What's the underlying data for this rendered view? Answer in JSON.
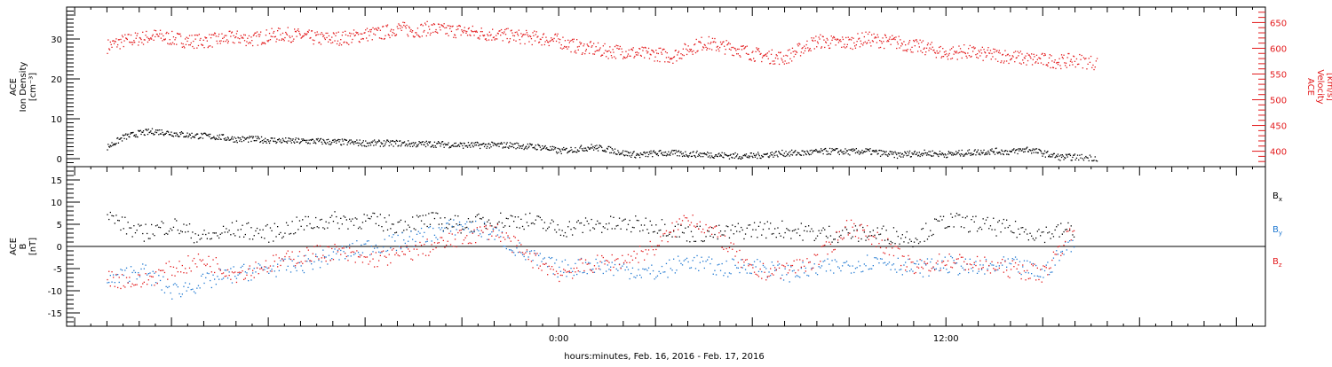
{
  "chart_data": [
    {
      "type": "scatter",
      "panel": "top",
      "left_axis": {
        "label_lines": [
          "ACE",
          "Ion Density",
          "[cm⁻³]"
        ],
        "range": [
          -2,
          38
        ],
        "ticks": [
          0,
          10,
          20,
          30
        ],
        "tick_labels": [
          "0",
          "10",
          "20",
          "30"
        ],
        "color": "#000000"
      },
      "right_axis": {
        "label_lines": [
          "ACE",
          "Velocity",
          "[km/s]"
        ],
        "range": [
          370,
          680
        ],
        "ticks": [
          400,
          450,
          500,
          550,
          600,
          650
        ],
        "tick_labels": [
          "400",
          "450",
          "500",
          "550",
          "600",
          "650"
        ],
        "color": "#e31a1c"
      },
      "series": [
        {
          "axis": "left",
          "color": "#000000",
          "points": [
            [
              -14,
              3
            ],
            [
              -13.5,
              5.5
            ],
            [
              -13,
              6.5
            ],
            [
              -12.5,
              7.0
            ],
            [
              -12,
              6.5
            ],
            [
              -11.5,
              6.0
            ],
            [
              -11,
              5.8
            ],
            [
              -10.5,
              5.5
            ],
            [
              -10,
              5.0
            ],
            [
              -9.5,
              5.0
            ],
            [
              -9,
              4.8
            ],
            [
              -8.5,
              4.6
            ],
            [
              -8,
              4.5
            ],
            [
              -7.5,
              4.5
            ],
            [
              -7,
              4.3
            ],
            [
              -6.5,
              4.2
            ],
            [
              -6,
              4.0
            ],
            [
              -5.5,
              4.0
            ],
            [
              -5,
              4.0
            ],
            [
              -4.5,
              3.8
            ],
            [
              -4,
              3.8
            ],
            [
              -3.5,
              3.7
            ],
            [
              -3,
              3.5
            ],
            [
              -2.5,
              3.5
            ],
            [
              -2,
              3.5
            ],
            [
              -1.5,
              3.5
            ],
            [
              -1,
              3.2
            ],
            [
              -0.5,
              3.0
            ],
            [
              0,
              2.0
            ],
            [
              0.5,
              2.5
            ],
            [
              1,
              3.0
            ],
            [
              1.5,
              2.5
            ],
            [
              2,
              1.5
            ],
            [
              2.5,
              1.0
            ],
            [
              3,
              1.5
            ],
            [
              3.5,
              1.5
            ],
            [
              4,
              1.3
            ],
            [
              4.5,
              1.2
            ],
            [
              5,
              1.0
            ],
            [
              5.5,
              0.8
            ],
            [
              6,
              0.8
            ],
            [
              6.5,
              1.2
            ],
            [
              7,
              1.5
            ],
            [
              7.5,
              1.5
            ],
            [
              8,
              1.8
            ],
            [
              8.5,
              2.0
            ],
            [
              9,
              1.8
            ],
            [
              9.5,
              2.0
            ],
            [
              10,
              1.5
            ],
            [
              10.5,
              1.0
            ],
            [
              11,
              1.5
            ],
            [
              11.5,
              1.5
            ],
            [
              12,
              1.2
            ],
            [
              12.5,
              1.5
            ],
            [
              13,
              1.8
            ],
            [
              13.5,
              2.0
            ],
            [
              14,
              1.8
            ],
            [
              14.5,
              2.5
            ],
            [
              15,
              1.5
            ],
            [
              15.5,
              0.5
            ],
            [
              16,
              0.5
            ],
            [
              16.7,
              0.3
            ]
          ]
        },
        {
          "axis": "right",
          "color": "#e31a1c",
          "points": [
            [
              -14,
              605
            ],
            [
              -13.5,
              615
            ],
            [
              -13,
              620
            ],
            [
              -12.5,
              625
            ],
            [
              -12,
              620
            ],
            [
              -11.5,
              615
            ],
            [
              -11,
              615
            ],
            [
              -10.5,
              618
            ],
            [
              -10,
              622
            ],
            [
              -9.5,
              618
            ],
            [
              -9,
              625
            ],
            [
              -8.5,
              628
            ],
            [
              -8,
              625
            ],
            [
              -7.5,
              620
            ],
            [
              -7,
              620
            ],
            [
              -6.5,
              622
            ],
            [
              -6,
              628
            ],
            [
              -5.5,
              630
            ],
            [
              -5,
              640
            ],
            [
              -4.5,
              635
            ],
            [
              -4,
              640
            ],
            [
              -3.5,
              635
            ],
            [
              -3,
              635
            ],
            [
              -2.5,
              630
            ],
            [
              -2,
              628
            ],
            [
              -1.5,
              625
            ],
            [
              -1,
              622
            ],
            [
              -0.5,
              620
            ],
            [
              0,
              615
            ],
            [
              0.5,
              605
            ],
            [
              1,
              600
            ],
            [
              1.5,
              595
            ],
            [
              2,
              595
            ],
            [
              2.5,
              590
            ],
            [
              3,
              590
            ],
            [
              3.5,
              585
            ],
            [
              4,
              600
            ],
            [
              4.5,
              612
            ],
            [
              5,
              605
            ],
            [
              5.5,
              600
            ],
            [
              6,
              590
            ],
            [
              6.5,
              585
            ],
            [
              7,
              582
            ],
            [
              7.5,
              600
            ],
            [
              8,
              615
            ],
            [
              8.5,
              612
            ],
            [
              9,
              612
            ],
            [
              9.5,
              620
            ],
            [
              10,
              615
            ],
            [
              10.5,
              612
            ],
            [
              11,
              605
            ],
            [
              11.5,
              600
            ],
            [
              12,
              590
            ],
            [
              12.5,
              595
            ],
            [
              13,
              590
            ],
            [
              13.5,
              588
            ],
            [
              14,
              585
            ],
            [
              14.5,
              580
            ],
            [
              15,
              578
            ],
            [
              15.5,
              575
            ],
            [
              16,
              578
            ],
            [
              16.7,
              572
            ]
          ]
        }
      ]
    },
    {
      "type": "scatter",
      "panel": "bottom",
      "left_axis": {
        "label_lines": [
          "ACE",
          "B",
          "[nT]"
        ],
        "range": [
          -18,
          18
        ],
        "ticks": [
          -15,
          -10,
          -5,
          0,
          5,
          10,
          15
        ],
        "tick_labels": [
          "-15",
          "-10",
          "-5",
          "0",
          "5",
          "10",
          "15"
        ],
        "color": "#000000"
      },
      "x_axis": {
        "label": "hours:minutes, Feb. 16, 2016 - Feb. 17, 2016",
        "range": [
          -15.25,
          21.9
        ],
        "ticks": [
          0,
          12
        ],
        "tick_labels": [
          "0:00",
          "12:00"
        ]
      },
      "series": [
        {
          "name": "Bx",
          "color": "#000000",
          "points": [
            [
              -14,
              7
            ],
            [
              -13,
              3
            ],
            [
              -12,
              5
            ],
            [
              -11,
              2
            ],
            [
              -10,
              4
            ],
            [
              -9,
              3
            ],
            [
              -8,
              5
            ],
            [
              -7,
              6
            ],
            [
              -6,
              6
            ],
            [
              -5,
              5
            ],
            [
              -4,
              6
            ],
            [
              -3,
              5
            ],
            [
              -2,
              6
            ],
            [
              -1,
              6
            ],
            [
              0,
              4
            ],
            [
              1,
              5
            ],
            [
              2,
              5
            ],
            [
              3,
              5
            ],
            [
              4,
              3
            ],
            [
              5,
              3
            ],
            [
              6,
              4
            ],
            [
              7,
              4
            ],
            [
              8,
              3
            ],
            [
              9,
              3
            ],
            [
              10,
              3
            ],
            [
              11,
              2
            ],
            [
              12,
              6
            ],
            [
              13,
              5
            ],
            [
              14,
              4
            ],
            [
              15,
              3
            ],
            [
              16,
              4
            ]
          ]
        },
        {
          "name": "By",
          "color": "#1f78d1",
          "points": [
            [
              -14,
              -8
            ],
            [
              -13,
              -5
            ],
            [
              -12,
              -10
            ],
            [
              -11,
              -8
            ],
            [
              -10,
              -6
            ],
            [
              -9,
              -5
            ],
            [
              -8,
              -4
            ],
            [
              -7,
              -2
            ],
            [
              -6,
              0
            ],
            [
              -5,
              1
            ],
            [
              -4,
              3
            ],
            [
              -3,
              5
            ],
            [
              -2,
              3
            ],
            [
              -1,
              -2
            ],
            [
              0,
              -5
            ],
            [
              1,
              -4
            ],
            [
              2,
              -5
            ],
            [
              3,
              -6
            ],
            [
              4,
              -3
            ],
            [
              5,
              -5
            ],
            [
              6,
              -4
            ],
            [
              7,
              -6
            ],
            [
              8,
              -5
            ],
            [
              9,
              -4
            ],
            [
              10,
              -3
            ],
            [
              11,
              -5
            ],
            [
              12,
              -4
            ],
            [
              13,
              -5
            ],
            [
              14,
              -4
            ],
            [
              15,
              -6
            ],
            [
              16,
              2
            ]
          ]
        },
        {
          "name": "Bz",
          "color": "#e31a1c",
          "points": [
            [
              -14,
              -7
            ],
            [
              -13,
              -8
            ],
            [
              -12,
              -5
            ],
            [
              -11,
              -3
            ],
            [
              -10,
              -6
            ],
            [
              -9,
              -4
            ],
            [
              -8,
              -2
            ],
            [
              -7,
              -1
            ],
            [
              -6,
              -3
            ],
            [
              -5,
              -2
            ],
            [
              -4,
              0
            ],
            [
              -3,
              2
            ],
            [
              -2,
              4
            ],
            [
              -1,
              -2
            ],
            [
              0,
              -6
            ],
            [
              1,
              -4
            ],
            [
              2,
              -3
            ],
            [
              3,
              0
            ],
            [
              4,
              7
            ],
            [
              5,
              2
            ],
            [
              6,
              -6
            ],
            [
              7,
              -5
            ],
            [
              8,
              -3
            ],
            [
              9,
              5
            ],
            [
              10,
              1
            ],
            [
              11,
              -5
            ],
            [
              12,
              -3
            ],
            [
              13,
              -4
            ],
            [
              14,
              -5
            ],
            [
              15,
              -6
            ],
            [
              16,
              5
            ]
          ]
        }
      ],
      "legend": [
        "Bx",
        "By",
        "Bz"
      ]
    }
  ]
}
